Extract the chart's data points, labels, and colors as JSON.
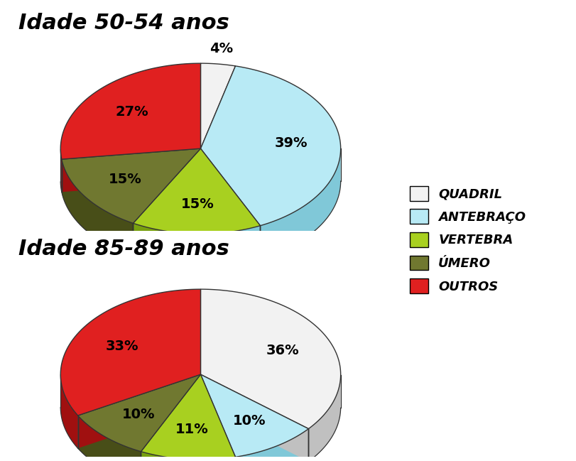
{
  "chart1_title": "Idade 50-54 anos",
  "chart2_title": "Idade 85-89 anos",
  "labels_display": [
    "QUADRIL",
    "ANTEBRAÇO",
    "VERTEBRA",
    "ÚMERO",
    "OUTROS"
  ],
  "values1": [
    4,
    39,
    15,
    15,
    27
  ],
  "values2": [
    36,
    10,
    11,
    10,
    33
  ],
  "colors": [
    "#f2f2f2",
    "#b8eaf5",
    "#a8d020",
    "#707830",
    "#e02020"
  ],
  "side_colors": [
    "#c0c0c0",
    "#80c8d8",
    "#78a010",
    "#484e18",
    "#a01010"
  ],
  "antebraco_side": "#6899a8",
  "quadril_side": "#a8a8a8",
  "background": "#ffffff",
  "title_fontsize": 22,
  "label_fontsize": 14,
  "legend_fontsize": 13
}
